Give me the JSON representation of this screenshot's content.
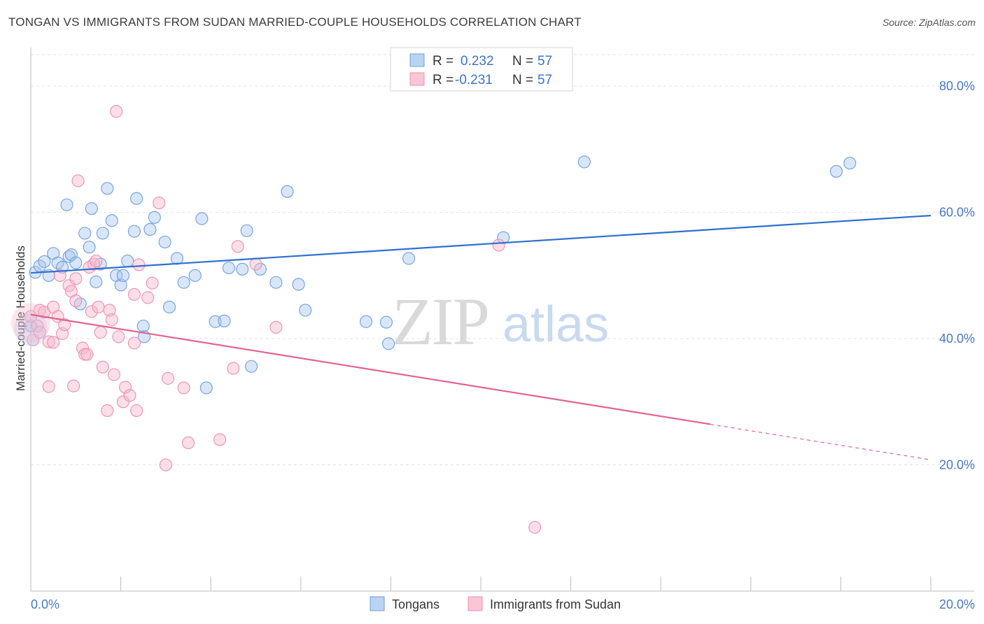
{
  "title": "TONGAN VS IMMIGRANTS FROM SUDAN MARRIED-COUPLE HOUSEHOLDS CORRELATION CHART",
  "source": "Source: ZipAtlas.com",
  "watermark": {
    "zip": "ZIP",
    "atlas": "atlas"
  },
  "legend_top": [
    {
      "r_label": "R =",
      "r_value": "0.232",
      "n_label": "N =",
      "n_value": "57",
      "color": "#a9c8ee"
    },
    {
      "r_label": "R =",
      "r_value": "-0.231",
      "n_label": "N =",
      "n_value": "57",
      "color": "#f6b8cb"
    }
  ],
  "chart_data": {
    "type": "scatter",
    "title": "TONGAN VS IMMIGRANTS FROM SUDAN MARRIED-COUPLE HOUSEHOLDS CORRELATION CHART",
    "xlabel": "",
    "ylabel": "Married-couple Households",
    "xlim": [
      0,
      20
    ],
    "ylim": [
      0,
      85
    ],
    "x_tick_labels": [
      "0.0%",
      "20.0%"
    ],
    "y_ticks": [
      20,
      40,
      60,
      80
    ],
    "y_tick_labels": [
      "20.0%",
      "40.0%",
      "60.0%",
      "80.0%"
    ],
    "grid": true,
    "legend_position": "top-center",
    "series": [
      {
        "name": "Tongans",
        "color": "#6f9fe0",
        "fill": "#a9c8ee",
        "line_color": "#2f6fcf",
        "trend": {
          "x0": 0,
          "y0": 50.4,
          "x1": 20,
          "y1": 59.5,
          "solid_until": 20
        },
        "points": [
          [
            0.1,
            50.5
          ],
          [
            0.2,
            51.5
          ],
          [
            0.3,
            52.2
          ],
          [
            0.4,
            50.0
          ],
          [
            0.5,
            53.5
          ],
          [
            0.6,
            52.0
          ],
          [
            0.7,
            51.3
          ],
          [
            0.8,
            61.2
          ],
          [
            0.85,
            53.0
          ],
          [
            0.9,
            53.3
          ],
          [
            1.0,
            52.0
          ],
          [
            1.1,
            45.5
          ],
          [
            1.2,
            56.7
          ],
          [
            1.3,
            54.5
          ],
          [
            1.35,
            60.6
          ],
          [
            1.45,
            49.0
          ],
          [
            1.55,
            51.8
          ],
          [
            1.6,
            56.7
          ],
          [
            1.7,
            63.8
          ],
          [
            1.8,
            58.7
          ],
          [
            1.9,
            50.0
          ],
          [
            2.0,
            48.5
          ],
          [
            2.05,
            50.0
          ],
          [
            2.15,
            52.3
          ],
          [
            2.3,
            57.0
          ],
          [
            2.35,
            62.2
          ],
          [
            2.5,
            42.0
          ],
          [
            2.52,
            40.3
          ],
          [
            2.65,
            57.3
          ],
          [
            2.75,
            59.2
          ],
          [
            2.98,
            55.3
          ],
          [
            3.08,
            45.0
          ],
          [
            3.25,
            52.7
          ],
          [
            3.4,
            48.9
          ],
          [
            3.65,
            50.0
          ],
          [
            3.8,
            59.0
          ],
          [
            3.9,
            32.2
          ],
          [
            4.1,
            42.7
          ],
          [
            4.3,
            42.8
          ],
          [
            4.4,
            51.2
          ],
          [
            4.7,
            51.0
          ],
          [
            4.8,
            57.1
          ],
          [
            4.9,
            35.6
          ],
          [
            5.1,
            51.0
          ],
          [
            5.45,
            48.9
          ],
          [
            5.7,
            63.3
          ],
          [
            5.95,
            48.6
          ],
          [
            6.1,
            44.5
          ],
          [
            7.45,
            42.7
          ],
          [
            7.9,
            42.6
          ],
          [
            7.95,
            39.2
          ],
          [
            8.4,
            52.7
          ],
          [
            10.5,
            56.0
          ],
          [
            12.3,
            68.0
          ],
          [
            17.9,
            66.5
          ],
          [
            18.2,
            67.8
          ],
          [
            0.0,
            42.0
          ]
        ]
      },
      {
        "name": "Immigrants from Sudan",
        "color": "#ee8fae",
        "fill": "#f6b8cb",
        "line_color": "#e2628f",
        "trend": {
          "x0": 0,
          "y0": 43.8,
          "x1": 20,
          "y1": 20.8,
          "solid_until": 15.1
        },
        "points": [
          [
            0.0,
            43.5
          ],
          [
            0.05,
            39.8
          ],
          [
            0.15,
            42.0
          ],
          [
            0.2,
            44.5
          ],
          [
            0.3,
            44.2
          ],
          [
            0.4,
            39.5
          ],
          [
            0.5,
            39.4
          ],
          [
            0.5,
            45.0
          ],
          [
            0.6,
            43.5
          ],
          [
            0.65,
            50.0
          ],
          [
            0.7,
            40.8
          ],
          [
            0.75,
            42.2
          ],
          [
            0.85,
            48.4
          ],
          [
            0.9,
            47.5
          ],
          [
            0.95,
            32.5
          ],
          [
            1.0,
            46.0
          ],
          [
            1.05,
            65.0
          ],
          [
            1.15,
            38.5
          ],
          [
            1.2,
            37.5
          ],
          [
            1.25,
            37.5
          ],
          [
            1.3,
            51.3
          ],
          [
            1.35,
            44.3
          ],
          [
            1.4,
            51.8
          ],
          [
            1.45,
            52.3
          ],
          [
            1.5,
            45.0
          ],
          [
            1.55,
            41.0
          ],
          [
            1.6,
            35.5
          ],
          [
            1.7,
            28.6
          ],
          [
            1.75,
            44.5
          ],
          [
            1.8,
            43.0
          ],
          [
            1.85,
            34.3
          ],
          [
            1.9,
            76.0
          ],
          [
            1.95,
            40.3
          ],
          [
            2.05,
            30.0
          ],
          [
            2.1,
            32.3
          ],
          [
            2.2,
            31.0
          ],
          [
            2.3,
            47.0
          ],
          [
            2.3,
            39.3
          ],
          [
            2.35,
            28.6
          ],
          [
            2.4,
            51.7
          ],
          [
            2.6,
            46.5
          ],
          [
            2.7,
            48.8
          ],
          [
            2.85,
            61.5
          ],
          [
            3.0,
            20.0
          ],
          [
            3.05,
            33.7
          ],
          [
            3.4,
            32.2
          ],
          [
            3.5,
            23.5
          ],
          [
            4.2,
            24.0
          ],
          [
            4.5,
            35.3
          ],
          [
            4.6,
            54.6
          ],
          [
            5.0,
            51.8
          ],
          [
            5.45,
            41.8
          ],
          [
            10.4,
            54.8
          ],
          [
            11.2,
            10.1
          ],
          [
            0.4,
            32.4
          ],
          [
            1.0,
            49.5
          ],
          [
            0.2,
            41.0
          ]
        ]
      }
    ]
  }
}
